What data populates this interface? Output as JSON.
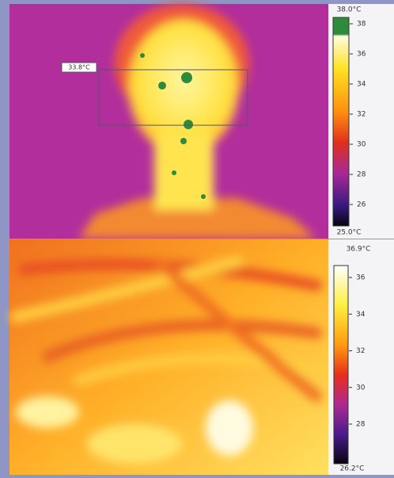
{
  "top_panel": {
    "spot_label": "33.8°C",
    "scale": {
      "max": "38.0°C",
      "min": "25.0°C",
      "ticks": [
        "38",
        "36",
        "34",
        "32",
        "30",
        "28",
        "26"
      ]
    }
  },
  "bottom_panel": {
    "scale": {
      "max": "36.9°C",
      "min": "26.2°C",
      "ticks": [
        "36",
        "34",
        "32",
        "30",
        "28"
      ]
    }
  }
}
